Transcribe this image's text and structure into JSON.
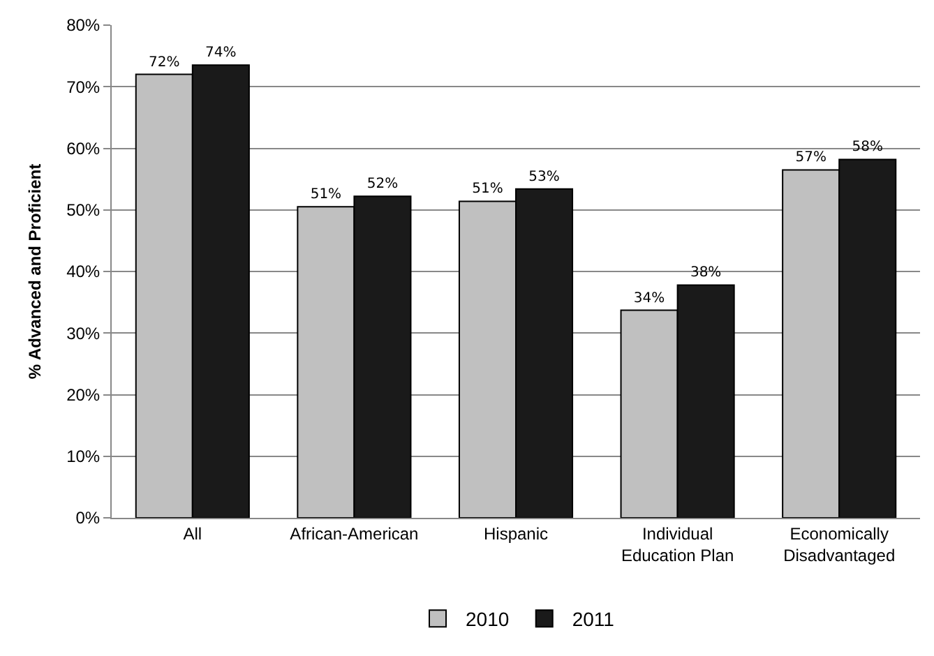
{
  "chart_data": {
    "type": "bar",
    "ylabel": "% Advanced and Proficient",
    "categories": [
      "All",
      "African-American",
      "Hispanic",
      "Individual\nEducation Plan",
      "Economically\nDisadvantaged"
    ],
    "series": [
      {
        "name": "2010",
        "color": "#c0c0c0",
        "values": [
          72,
          50.5,
          51.4,
          33.7,
          56.5
        ],
        "value_labels": [
          "72%",
          "51%",
          "51%",
          "34%",
          "57%"
        ]
      },
      {
        "name": "2011",
        "color": "#1a1a1a",
        "values": [
          73.5,
          52.2,
          53.4,
          37.8,
          58.2
        ],
        "value_labels": [
          "74%",
          "52%",
          "53%",
          "38%",
          "58%"
        ]
      }
    ],
    "ylim": [
      0,
      80
    ],
    "yticks": [
      {
        "value": 0,
        "label": "0%"
      },
      {
        "value": 10,
        "label": "10%"
      },
      {
        "value": 20,
        "label": "20%"
      },
      {
        "value": 30,
        "label": "30%"
      },
      {
        "value": 40,
        "label": "40%"
      },
      {
        "value": 50,
        "label": "50%"
      },
      {
        "value": 60,
        "label": "60%"
      },
      {
        "value": 70,
        "label": "70%"
      },
      {
        "value": 80,
        "label": "80%"
      }
    ],
    "grid": "y",
    "legend": "bottom"
  }
}
